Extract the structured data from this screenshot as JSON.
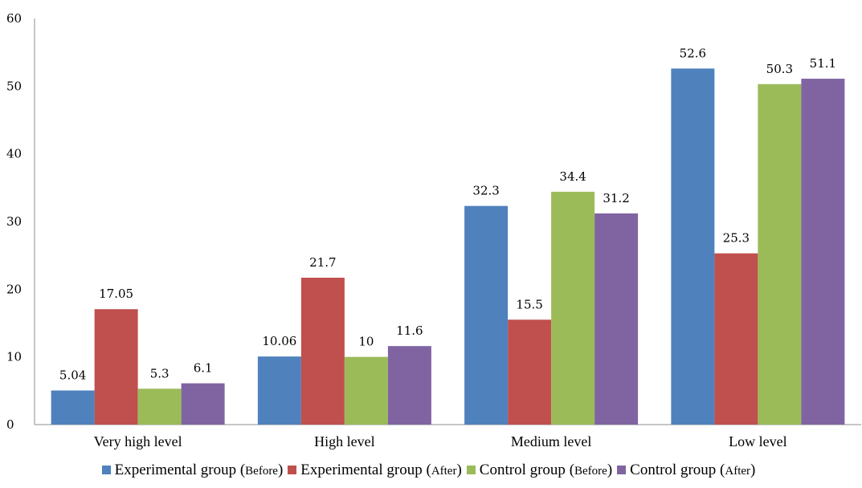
{
  "chart_data": {
    "type": "bar",
    "title": "",
    "xlabel": "",
    "ylabel": "",
    "ylim": [
      0,
      60
    ],
    "yticks": [
      "0",
      "10",
      "20",
      "30",
      "40",
      "50",
      "60"
    ],
    "grid": false,
    "legend_position": "bottom",
    "categories": [
      "Very high level",
      "High level",
      "Medium level",
      "Low level"
    ],
    "series": [
      {
        "name": "Experimental group (Before)",
        "legend_main": "Experimental group",
        "legend_paren": "Before",
        "color": "#4F81BD",
        "values": [
          5.04,
          10.06,
          32.3,
          52.6
        ],
        "labels": [
          "5.04",
          "10.06",
          "32.3",
          "52.6"
        ]
      },
      {
        "name": "Experimental group (After)",
        "legend_main": "Experimental group",
        "legend_paren": "After",
        "color": "#C0504D",
        "values": [
          17.05,
          21.7,
          15.5,
          25.3
        ],
        "labels": [
          "17.05",
          "21.7",
          "15.5",
          "25.3"
        ]
      },
      {
        "name": "Control group (Before)",
        "legend_main": "Control group",
        "legend_paren": "Before",
        "color": "#9BBB59",
        "values": [
          5.3,
          10,
          34.4,
          50.3
        ],
        "labels": [
          "5.3",
          "10",
          "34.4",
          "50.3"
        ]
      },
      {
        "name": "Control group (After)",
        "legend_main": "Control group",
        "legend_paren": "After",
        "color": "#8064A2",
        "values": [
          6.1,
          11.6,
          31.2,
          51.1
        ],
        "labels": [
          "6.1",
          "11.6",
          "31.2",
          "51.1"
        ]
      }
    ]
  }
}
